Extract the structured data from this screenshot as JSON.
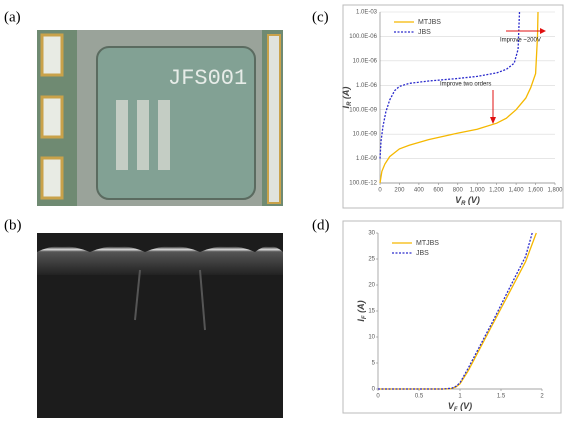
{
  "panels": {
    "a": "(a)",
    "b": "(b)",
    "c": "(c)",
    "d": "(d)"
  },
  "photo_a": {
    "chip_label": "JFS001"
  },
  "chart_data": [
    {
      "type": "line",
      "log_y": true,
      "grid": true,
      "legend": "upper left",
      "xlabel": {
        "main": "V",
        "sub": "R",
        "unit": " (V)"
      },
      "ylabel": {
        "main": "I",
        "sub": "R",
        "unit": " (A)"
      },
      "annotations": [
        "Improve ~200V",
        "Improve two orders"
      ],
      "xlim": [
        0,
        1800
      ],
      "xticks": [
        0,
        200,
        400,
        600,
        800,
        {
          "value": 1000,
          "label": "1,000"
        },
        {
          "value": 1200,
          "label": "1,200"
        },
        {
          "value": 1400,
          "label": "1,400"
        },
        {
          "value": 1600,
          "label": "1,600"
        },
        {
          "value": 1800,
          "label": "1,800"
        }
      ],
      "ylim": [
        1e-10,
        0.001
      ],
      "yticks": [
        {
          "value": 1e-10,
          "label": "100.0E-12"
        },
        {
          "value": 1e-09,
          "label": "1.0E-09"
        },
        {
          "value": 1e-08,
          "label": "10.0E-09"
        },
        {
          "value": 1e-07,
          "label": "100.0E-09"
        },
        {
          "value": 1e-06,
          "label": "1.0E-06"
        },
        {
          "value": 1e-05,
          "label": "10.0E-06"
        },
        {
          "value": 0.0001,
          "label": "100.0E-06"
        },
        {
          "value": 0.001,
          "label": "1.0E-03"
        }
      ],
      "series": [
        {
          "name": "MTJBS",
          "color": "#f5b800",
          "dash": false,
          "x": [
            0,
            20,
            50,
            100,
            200,
            300,
            500,
            800,
            1000,
            1200,
            1300,
            1400,
            1500,
            1550,
            1600,
            1620,
            1625
          ],
          "values": [
            1e-10,
            3e-10,
            6e-10,
            1.2e-09,
            2.5e-09,
            3.5e-09,
            6e-09,
            1.1e-08,
            1.6e-08,
            2.8e-08,
            4.5e-08,
            1e-07,
            3e-07,
            8e-07,
            3e-06,
            0.0001,
            0.001
          ]
        },
        {
          "name": "JBS",
          "color": "#2a2acc",
          "dash": true,
          "x": [
            0,
            10,
            30,
            60,
            100,
            150,
            200,
            300,
            500,
            800,
            1000,
            1200,
            1300,
            1380,
            1420,
            1430,
            1435
          ],
          "values": [
            1e-09,
            5e-09,
            2e-08,
            8e-08,
            2.5e-07,
            6e-07,
            9e-07,
            1.2e-06,
            1.5e-06,
            1.9e-06,
            2.3e-06,
            3.2e-06,
            4.5e-06,
            8e-06,
            3e-05,
            0.0003,
            0.001
          ]
        }
      ]
    },
    {
      "type": "line",
      "log_y": false,
      "grid": false,
      "legend": "upper left",
      "xlabel": {
        "main": "V",
        "sub": "F",
        "unit": " (V)"
      },
      "ylabel": {
        "main": "I",
        "sub": "F",
        "unit": " (A)"
      },
      "xlim": [
        0,
        2
      ],
      "xticks": [
        0,
        0.5,
        1,
        1.5,
        2
      ],
      "ylim": [
        0,
        30
      ],
      "yticks": [
        0,
        5,
        10,
        15,
        20,
        25,
        30
      ],
      "series": [
        {
          "name": "MTJBS",
          "color": "#f5b800",
          "dash": false,
          "x": [
            0,
            0.5,
            0.8,
            0.9,
            0.95,
            1.0,
            1.1,
            1.2,
            1.4,
            1.6,
            1.8,
            1.93
          ],
          "values": [
            0,
            0,
            0,
            0.1,
            0.4,
            1,
            3.5,
            6.5,
            12.5,
            18.5,
            24.5,
            30
          ]
        },
        {
          "name": "JBS",
          "color": "#2a2acc",
          "dash": true,
          "x": [
            0,
            0.5,
            0.8,
            0.9,
            0.95,
            1.0,
            1.1,
            1.2,
            1.4,
            1.6,
            1.8,
            1.88
          ],
          "values": [
            0,
            0,
            0,
            0.15,
            0.5,
            1.2,
            4,
            7,
            13,
            19.3,
            25.5,
            30
          ]
        }
      ]
    }
  ]
}
